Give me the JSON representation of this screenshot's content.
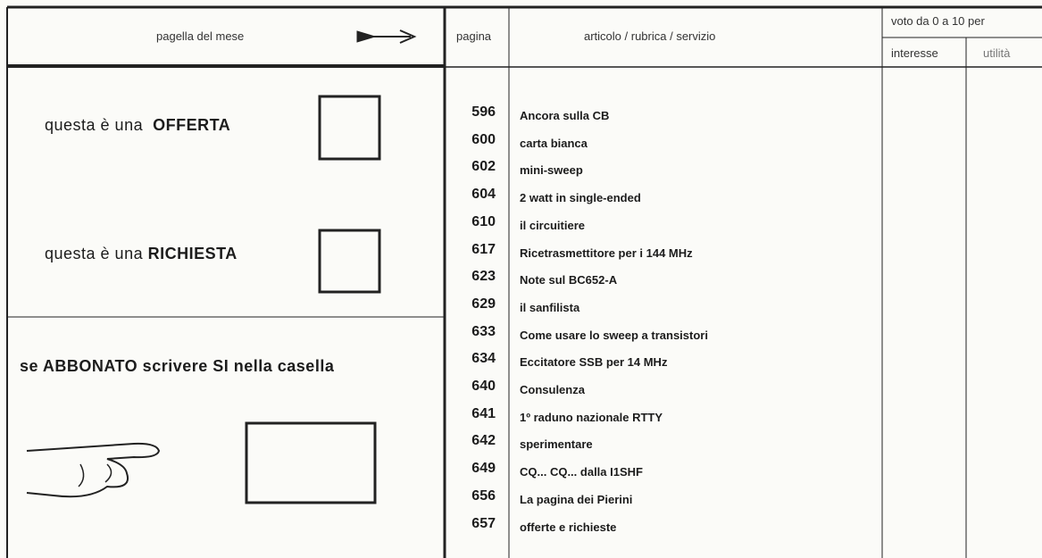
{
  "header": {
    "left_title": "pagella del mese",
    "page_col": "pagina",
    "article_col": "articolo / rubrica / servizio",
    "vote_title": "voto da 0 a 10 per",
    "vote_interest": "interesse",
    "vote_utility": "utilità"
  },
  "left": {
    "offer": {
      "text": "questa è una",
      "keyword": "OFFERTA"
    },
    "request": {
      "text": "questa è una",
      "keyword": "RICHIESTA"
    },
    "subscriber": "se ABBONATO scrivere SI nella casella"
  },
  "rows": [
    {
      "page": "596",
      "title": "Ancora sulla CB"
    },
    {
      "page": "600",
      "title": "carta bianca"
    },
    {
      "page": "602",
      "title": "mini-sweep"
    },
    {
      "page": "604",
      "title": "2 watt in single-ended"
    },
    {
      "page": "610",
      "title": "il circuitiere"
    },
    {
      "page": "617",
      "title": "Ricetrasmettitore per i 144 MHz"
    },
    {
      "page": "623",
      "title": "Note sul BC652-A"
    },
    {
      "page": "629",
      "title": "il sanfilista"
    },
    {
      "page": "633",
      "title": "Come usare lo sweep a transistori"
    },
    {
      "page": "634",
      "title": "Eccitatore SSB per 14 MHz"
    },
    {
      "page": "640",
      "title": "Consulenza"
    },
    {
      "page": "641",
      "title": "1º raduno nazionale RTTY"
    },
    {
      "page": "642",
      "title": "sperimentare"
    },
    {
      "page": "649",
      "title": "CQ... CQ... dalla I1SHF"
    },
    {
      "page": "656",
      "title": "La pagina dei Pierini"
    },
    {
      "page": "657",
      "title": "offerte e richieste"
    }
  ]
}
